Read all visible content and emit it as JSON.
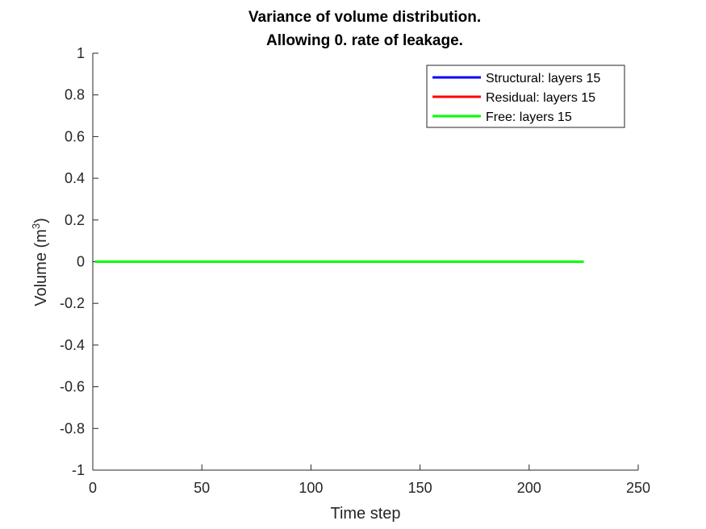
{
  "chart_data": {
    "type": "line",
    "title": [
      "Variance of volume distribution.",
      "Allowing 0. rate of leakage."
    ],
    "xlabel": "Time step",
    "ylabel": "Volume (m",
    "ylabel_sup": "3",
    "ylabel_close": ")",
    "xlim": [
      0,
      250
    ],
    "ylim": [
      -1,
      1
    ],
    "xticks": [
      0,
      50,
      100,
      150,
      200,
      250
    ],
    "yticks": [
      -1,
      -0.8,
      -0.6,
      -0.4,
      -0.2,
      0,
      0.2,
      0.4,
      0.6,
      0.8,
      1
    ],
    "xtick_labels": [
      "0",
      "50",
      "100",
      "150",
      "200",
      "250"
    ],
    "ytick_labels": [
      "-1",
      "-0.8",
      "-0.6",
      "-0.4",
      "-0.2",
      "0",
      "0.2",
      "0.4",
      "0.6",
      "0.8",
      "1"
    ],
    "grid": false,
    "legend_position": "top-right",
    "series": [
      {
        "name": "Structural: layers 15",
        "color": "#0000ff",
        "x": [
          1,
          225
        ],
        "y": [
          0,
          0
        ]
      },
      {
        "name": "Residual: layers 15",
        "color": "#ff0000",
        "x": [
          1,
          225
        ],
        "y": [
          0,
          0
        ]
      },
      {
        "name": "Free: layers 15",
        "color": "#00ff00",
        "x": [
          1,
          225
        ],
        "y": [
          0,
          0
        ]
      }
    ]
  }
}
